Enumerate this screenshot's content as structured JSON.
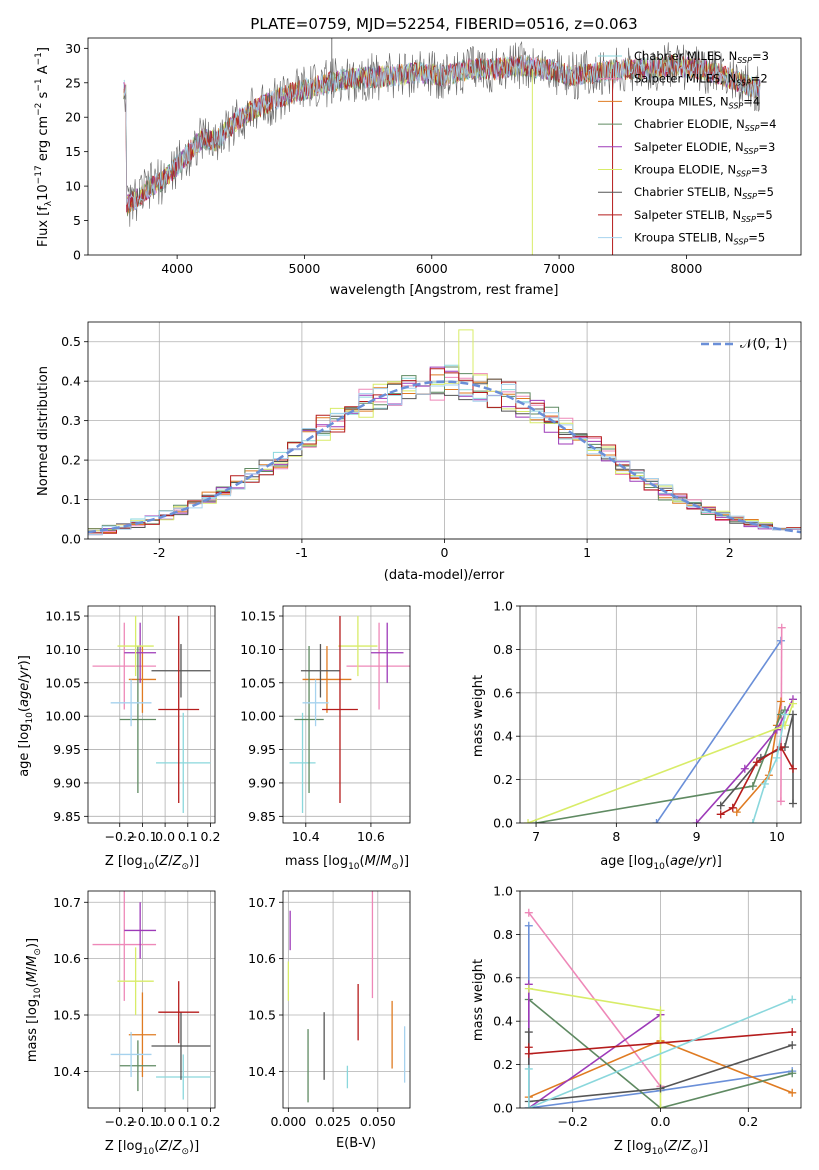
{
  "colors": {
    "Chabrier MILES": "#8ad7dc",
    "Salpeter MILES": "#ee88b8",
    "Kroupa MILES": "#df7b22",
    "Chabrier ELODIE": "#5f8a62",
    "Salpeter ELODIE": "#9d3ab8",
    "Kroupa ELODIE": "#d8ec68",
    "Chabrier STELIB": "#555555",
    "Salpeter STELIB": "#b51c1c",
    "Kroupa STELIB": "#a6d2ee",
    "normal": "#6a8fd8"
  },
  "models": [
    {
      "name": "Chabrier MILES",
      "nssp": "3",
      "Z": 0.08,
      "Zerr": 0.12,
      "age": 9.93,
      "age_err": 0.075,
      "mass": 10.39,
      "mass_err": 0.04,
      "ebv": 0.033,
      "ebv_err": 0.02
    },
    {
      "name": "Salpeter MILES",
      "nssp": "2",
      "Z": -0.18,
      "Zerr": 0.14,
      "age": 10.075,
      "age_err": 0.065,
      "mass": 10.625,
      "mass_err": 0.1,
      "ebv": 0.047,
      "ebv_err": 0.095
    },
    {
      "name": "Kroupa MILES",
      "nssp": "4",
      "Z": -0.1,
      "Zerr": 0.06,
      "age": 10.055,
      "age_err": 0.05,
      "mass": 10.465,
      "mass_err": 0.075,
      "ebv": 0.058,
      "ebv_err": 0.06
    },
    {
      "name": "Chabrier ELODIE",
      "nssp": "4",
      "Z": -0.12,
      "Zerr": 0.08,
      "age": 9.995,
      "age_err": 0.11,
      "mass": 10.41,
      "mass_err": 0.045,
      "ebv": 0.011,
      "ebv_err": 0.065
    },
    {
      "name": "Salpeter ELODIE",
      "nssp": "3",
      "Z": -0.11,
      "Zerr": 0.07,
      "age": 10.095,
      "age_err": 0.045,
      "mass": 10.65,
      "mass_err": 0.05,
      "ebv": 0.001,
      "ebv_err": 0.035
    },
    {
      "name": "Kroupa ELODIE",
      "nssp": "3",
      "Z": -0.13,
      "Zerr": 0.08,
      "age": 10.105,
      "age_err": 0.045,
      "mass": 10.56,
      "mass_err": 0.06,
      "ebv": 0.0,
      "ebv_err": 0.035
    },
    {
      "name": "Chabrier STELIB",
      "nssp": "5",
      "Z": 0.07,
      "Zerr": 0.13,
      "age": 10.068,
      "age_err": 0.04,
      "mass": 10.445,
      "mass_err": 0.06,
      "ebv": 0.02,
      "ebv_err": 0.06
    },
    {
      "name": "Salpeter STELIB",
      "nssp": "5",
      "Z": 0.06,
      "Zerr": 0.09,
      "age": 10.01,
      "age_err": 0.14,
      "mass": 10.505,
      "mass_err": 0.055,
      "ebv": 0.039,
      "ebv_err": 0.05
    },
    {
      "name": "Kroupa STELIB",
      "nssp": "5",
      "Z": -0.15,
      "Zerr": 0.09,
      "age": 10.02,
      "age_err": 0.035,
      "mass": 10.43,
      "mass_err": 0.04,
      "ebv": 0.065,
      "ebv_err": 0.05
    }
  ],
  "chart_data": [
    {
      "type": "line",
      "title": "PLATE=0759, MJD=52254, FIBERID=0516, z=0.063",
      "xlabel": "wavelength [Angstrom, rest frame]",
      "ylabel": "Flux [f_λ 10^-17 erg cm^-2 s^-1 A^-1]",
      "xlim": [
        3300,
        8900
      ],
      "ylim": [
        0,
        31.5
      ],
      "xticks": [
        4000,
        5000,
        6000,
        7000,
        8000
      ],
      "yticks": [
        0,
        5,
        10,
        15,
        20,
        25,
        30
      ],
      "legend_loc": "upper right",
      "continuum_x": [
        3600,
        3700,
        3800,
        3900,
        4000,
        4100,
        4200,
        4300,
        4500,
        4700,
        4900,
        5100,
        5300,
        5500,
        5700,
        5900,
        6100,
        6300,
        6500,
        6700,
        6900,
        7100,
        7300,
        7500,
        7700,
        7900,
        8100,
        8300,
        8500,
        8600
      ],
      "continuum_y": [
        7,
        8.5,
        10,
        11,
        13,
        15,
        17,
        16.5,
        20,
        22,
        23.5,
        24.5,
        25.5,
        25.8,
        26,
        26.5,
        26,
        27,
        27,
        27.5,
        27,
        26,
        26.5,
        27,
        27,
        27.5,
        27,
        26,
        24.5,
        24
      ]
    },
    {
      "type": "line",
      "xlabel": "(data-model)/error",
      "ylabel": "Normed distribution",
      "xlim": [
        -2.5,
        2.5
      ],
      "ylim": [
        0,
        0.55
      ],
      "xticks": [
        -2,
        -1,
        0,
        1,
        2
      ],
      "yticks": [
        0.0,
        0.1,
        0.2,
        0.3,
        0.4,
        0.5
      ],
      "legend": "𝒩(0, 1)",
      "bin_width": 0.1
    },
    {
      "type": "scatter",
      "xlabel": "Z [log10(Z/Z⊙)]",
      "ylabel": "age [log10(age/yr)]",
      "xlim": [
        -0.34,
        0.22
      ],
      "ylim": [
        9.84,
        10.165
      ],
      "xticks": [
        -0.2,
        -0.1,
        0.0,
        0.1,
        0.2
      ],
      "yticks": [
        9.85,
        9.9,
        9.95,
        10.0,
        10.05,
        10.1,
        10.15
      ]
    },
    {
      "type": "scatter",
      "xlabel": "mass [log10(M/M⊙)]",
      "xlim": [
        10.33,
        10.72
      ],
      "ylim": [
        9.84,
        10.165
      ],
      "xticks": [
        10.4,
        10.6
      ],
      "yticks": [
        9.85,
        9.9,
        9.95,
        10.0,
        10.05,
        10.1,
        10.15
      ]
    },
    {
      "type": "line",
      "xlabel": "age [log10(age/yr)]",
      "ylabel": "mass weight",
      "xlim": [
        6.8,
        10.3
      ],
      "ylim": [
        0,
        1
      ],
      "xticks": [
        7,
        8,
        9,
        10
      ],
      "yticks": [
        0.0,
        0.2,
        0.4,
        0.6,
        0.8,
        1.0
      ],
      "series": [
        {
          "color": "#6a8fd8",
          "x": [
            8.5,
            10.05
          ],
          "y": [
            0.0,
            0.84
          ]
        },
        {
          "color": "#ee88b8",
          "x": [
            10.05,
            10.06
          ],
          "y": [
            0.1,
            0.9
          ]
        },
        {
          "color": "#df7b22",
          "x": [
            9.5,
            9.9,
            10.0,
            10.05
          ],
          "y": [
            0.05,
            0.22,
            0.45,
            0.56
          ]
        },
        {
          "color": "#5f8a62",
          "x": [
            7.0,
            9.7,
            10.05,
            10.1
          ],
          "y": [
            0.0,
            0.17,
            0.5,
            0.52
          ]
        },
        {
          "color": "#9d3ab8",
          "x": [
            9.0,
            9.6,
            10.0,
            10.2
          ],
          "y": [
            0.0,
            0.25,
            0.43,
            0.57
          ]
        },
        {
          "color": "#d8ec68",
          "x": [
            6.9,
            10.1,
            10.2
          ],
          "y": [
            0.0,
            0.45,
            0.55
          ]
        },
        {
          "color": "#555555",
          "x": [
            9.3,
            9.8,
            10.1,
            10.2,
            10.2
          ],
          "y": [
            0.08,
            0.3,
            0.35,
            0.5,
            0.09
          ]
        },
        {
          "color": "#b51c1c",
          "x": [
            9.3,
            9.45,
            9.75,
            10.05,
            10.2
          ],
          "y": [
            0.04,
            0.07,
            0.28,
            0.35,
            0.25
          ]
        },
        {
          "color": "#8ad7dc",
          "x": [
            9.7,
            9.85,
            10.0,
            10.1
          ],
          "y": [
            0.0,
            0.18,
            0.3,
            0.5
          ]
        }
      ]
    },
    {
      "type": "scatter",
      "xlabel": "Z [log10(Z/Z⊙)]",
      "ylabel": "mass [log10(M/M⊙)]",
      "xlim": [
        -0.34,
        0.22
      ],
      "ylim": [
        10.335,
        10.72
      ],
      "xticks": [
        -0.2,
        -0.1,
        0.0,
        0.1,
        0.2
      ],
      "yticks": [
        10.4,
        10.5,
        10.6,
        10.7
      ]
    },
    {
      "type": "scatter",
      "xlabel": "E(B-V)",
      "xlim": [
        -0.003,
        0.068
      ],
      "ylim": [
        10.335,
        10.72
      ],
      "xticks": [
        0.0,
        0.025,
        0.05
      ],
      "yticks": [
        10.4,
        10.5,
        10.6,
        10.7
      ]
    },
    {
      "type": "line",
      "xlabel": "Z [log10(Z/Z⊙)]",
      "ylabel": "mass weight",
      "xlim": [
        -0.32,
        0.32
      ],
      "ylim": [
        0,
        1
      ],
      "xticks": [
        -0.2,
        0.0,
        0.2
      ],
      "yticks": [
        0.0,
        0.2,
        0.4,
        0.6,
        0.8,
        1.0
      ],
      "series": [
        {
          "color": "#6a8fd8",
          "x": [
            -0.3,
            -0.3,
            0.0,
            0.3
          ],
          "y": [
            0.84,
            0.0,
            0.08,
            0.17
          ]
        },
        {
          "color": "#ee88b8",
          "x": [
            -0.3,
            0.0
          ],
          "y": [
            0.9,
            0.1
          ]
        },
        {
          "color": "#df7b22",
          "x": [
            -0.3,
            0.0,
            0.3
          ],
          "y": [
            0.05,
            0.31,
            0.07
          ]
        },
        {
          "color": "#5f8a62",
          "x": [
            -0.3,
            0.0,
            0.3
          ],
          "y": [
            0.5,
            0.0,
            0.16
          ]
        },
        {
          "color": "#9d3ab8",
          "x": [
            -0.3,
            -0.3,
            0.0
          ],
          "y": [
            0.57,
            0.0,
            0.43
          ]
        },
        {
          "color": "#d8ec68",
          "x": [
            -0.3,
            0.0,
            0.0
          ],
          "y": [
            0.55,
            0.45,
            0.0
          ]
        },
        {
          "color": "#555555",
          "x": [
            -0.3,
            -0.3,
            0.0,
            0.3
          ],
          "y": [
            0.35,
            0.03,
            0.09,
            0.29
          ]
        },
        {
          "color": "#b51c1c",
          "x": [
            -0.3,
            -0.3,
            0.3
          ],
          "y": [
            0.28,
            0.25,
            0.35
          ]
        },
        {
          "color": "#8ad7dc",
          "x": [
            -0.3,
            -0.3,
            0.3
          ],
          "y": [
            0.18,
            0.0,
            0.5
          ]
        }
      ]
    }
  ]
}
